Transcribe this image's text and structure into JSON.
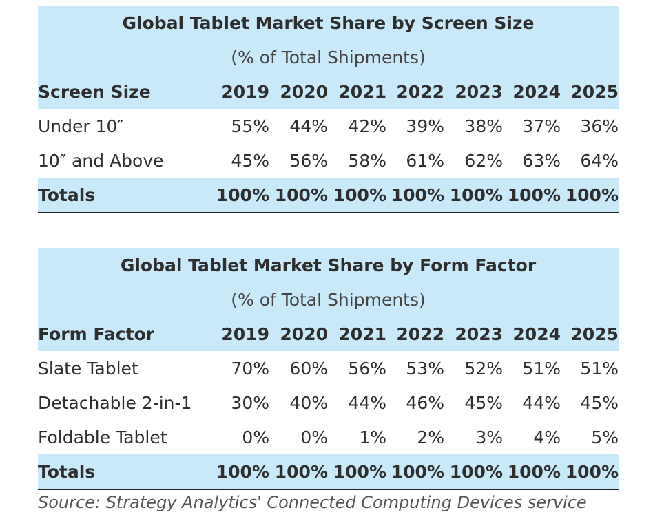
{
  "chart_data": [
    {
      "type": "table",
      "title": "Global Tablet Market Share by Screen Size",
      "subtitle": "(% of Total Shipments)",
      "header_label": "Screen Size",
      "columns": [
        "2019",
        "2020",
        "2021",
        "2022",
        "2023",
        "2024",
        "2025"
      ],
      "rows": [
        {
          "label": "Under 10″",
          "values": [
            "55%",
            "44%",
            "42%",
            "39%",
            "38%",
            "37%",
            "36%"
          ]
        },
        {
          "label": "10″ and Above",
          "values": [
            "45%",
            "56%",
            "58%",
            "61%",
            "62%",
            "63%",
            "64%"
          ]
        }
      ],
      "totals": {
        "label": "Totals",
        "values": [
          "100%",
          "100%",
          "100%",
          "100%",
          "100%",
          "100%",
          "100%"
        ]
      }
    },
    {
      "type": "table",
      "title": "Global Tablet Market Share by Form Factor",
      "subtitle": "(% of Total Shipments)",
      "header_label": "Form Factor",
      "columns": [
        "2019",
        "2020",
        "2021",
        "2022",
        "2023",
        "2024",
        "2025"
      ],
      "rows": [
        {
          "label": "Slate Tablet",
          "values": [
            "70%",
            "60%",
            "56%",
            "53%",
            "52%",
            "51%",
            "51%"
          ]
        },
        {
          "label": "Detachable 2-in-1",
          "values": [
            "30%",
            "40%",
            "44%",
            "46%",
            "45%",
            "44%",
            "45%"
          ]
        },
        {
          "label": "Foldable Tablet",
          "values": [
            "0%",
            "0%",
            "1%",
            "2%",
            "3%",
            "4%",
            "5%"
          ]
        }
      ],
      "totals": {
        "label": "Totals",
        "values": [
          "100%",
          "100%",
          "100%",
          "100%",
          "100%",
          "100%",
          "100%"
        ]
      }
    }
  ],
  "source": "Source: Strategy Analytics' Connected Computing Devices service",
  "colors": {
    "header_fill": "#c9e9f8",
    "text": "#2e2e2e",
    "rule": "#222222"
  }
}
